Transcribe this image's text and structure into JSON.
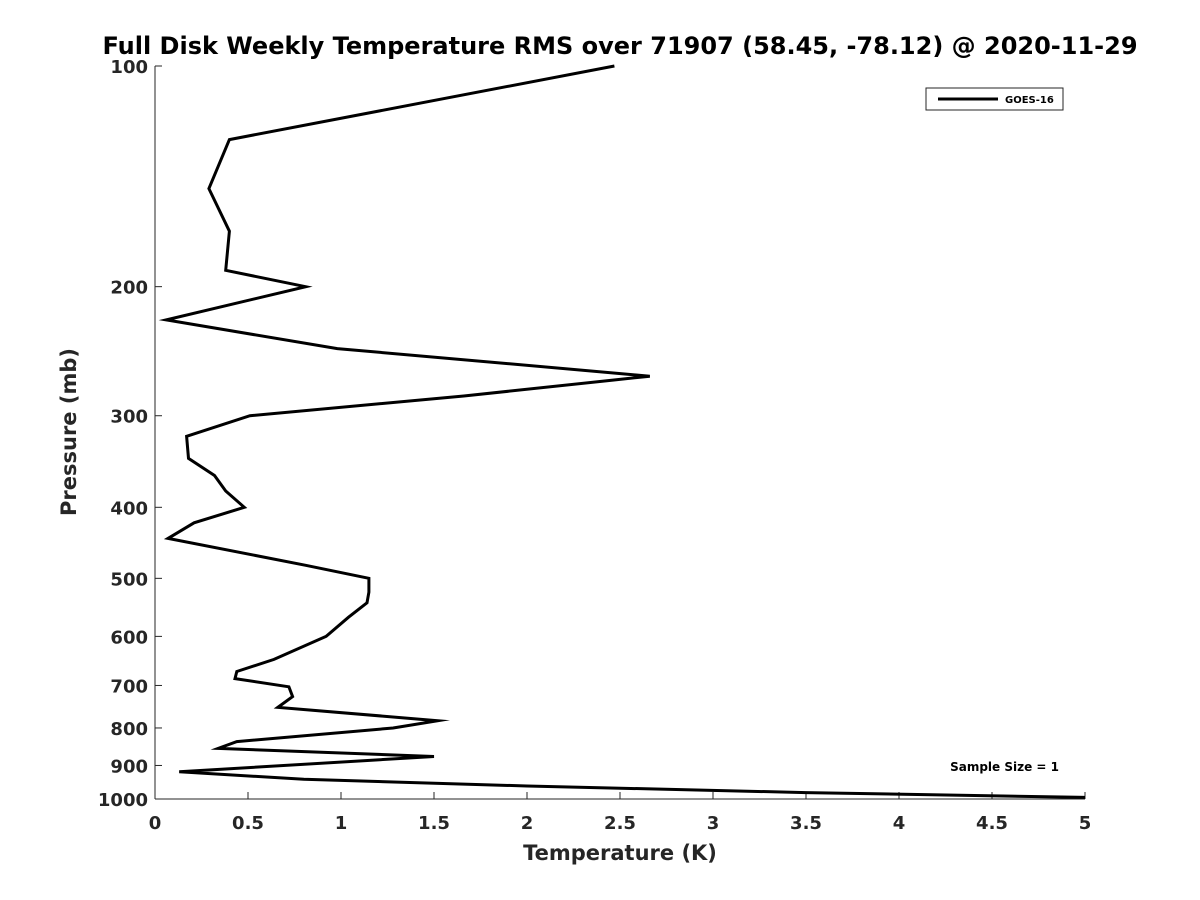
{
  "chart_data": {
    "type": "line",
    "title": "Full Disk Weekly Temperature RMS over 71907 (58.45, -78.12) @ 2020-11-29",
    "xlabel": "Temperature (K)",
    "ylabel": "Pressure (mb)",
    "xlim": [
      0,
      5
    ],
    "ylim": [
      100,
      1000
    ],
    "y_scale": "log",
    "y_reversed": true,
    "x_ticks": [
      0,
      0.5,
      1,
      1.5,
      2,
      2.5,
      3,
      3.5,
      4,
      4.5,
      5
    ],
    "x_tick_labels": [
      "0",
      "0.5",
      "1",
      "1.5",
      "2",
      "2.5",
      "3",
      "3.5",
      "4",
      "4.5",
      "5"
    ],
    "y_ticks": [
      100,
      200,
      300,
      400,
      500,
      600,
      700,
      800,
      900,
      1000
    ],
    "y_tick_labels": [
      "100",
      "200",
      "300",
      "400",
      "500",
      "600",
      "700",
      "800",
      "900",
      "1000"
    ],
    "grid": false,
    "legend_position": "top-right",
    "series": [
      {
        "name": "GOES-16",
        "color": "#000000",
        "points": [
          {
            "x": 2.47,
            "y": 100
          },
          {
            "x": 0.4,
            "y": 126
          },
          {
            "x": 0.29,
            "y": 147
          },
          {
            "x": 0.4,
            "y": 168
          },
          {
            "x": 0.38,
            "y": 190
          },
          {
            "x": 0.81,
            "y": 200
          },
          {
            "x": 0.06,
            "y": 222
          },
          {
            "x": 0.98,
            "y": 243
          },
          {
            "x": 2.66,
            "y": 265
          },
          {
            "x": 1.66,
            "y": 282
          },
          {
            "x": 0.51,
            "y": 300
          },
          {
            "x": 0.17,
            "y": 320
          },
          {
            "x": 0.18,
            "y": 343
          },
          {
            "x": 0.32,
            "y": 362
          },
          {
            "x": 0.38,
            "y": 380
          },
          {
            "x": 0.48,
            "y": 400
          },
          {
            "x": 0.21,
            "y": 420
          },
          {
            "x": 0.07,
            "y": 441
          },
          {
            "x": 0.81,
            "y": 480
          },
          {
            "x": 1.15,
            "y": 500
          },
          {
            "x": 1.15,
            "y": 522
          },
          {
            "x": 1.14,
            "y": 540
          },
          {
            "x": 1.04,
            "y": 565
          },
          {
            "x": 0.92,
            "y": 600
          },
          {
            "x": 0.64,
            "y": 645
          },
          {
            "x": 0.44,
            "y": 670
          },
          {
            "x": 0.43,
            "y": 685
          },
          {
            "x": 0.72,
            "y": 703
          },
          {
            "x": 0.74,
            "y": 725
          },
          {
            "x": 0.66,
            "y": 750
          },
          {
            "x": 1.52,
            "y": 782
          },
          {
            "x": 1.28,
            "y": 800
          },
          {
            "x": 0.44,
            "y": 835
          },
          {
            "x": 0.34,
            "y": 853
          },
          {
            "x": 1.5,
            "y": 875
          },
          {
            "x": 0.13,
            "y": 918
          },
          {
            "x": 0.8,
            "y": 940
          },
          {
            "x": 2.0,
            "y": 960
          },
          {
            "x": 3.5,
            "y": 980
          },
          {
            "x": 5.0,
            "y": 995
          }
        ]
      }
    ],
    "annotations": [
      {
        "text": "Sample Size = 1"
      }
    ]
  }
}
